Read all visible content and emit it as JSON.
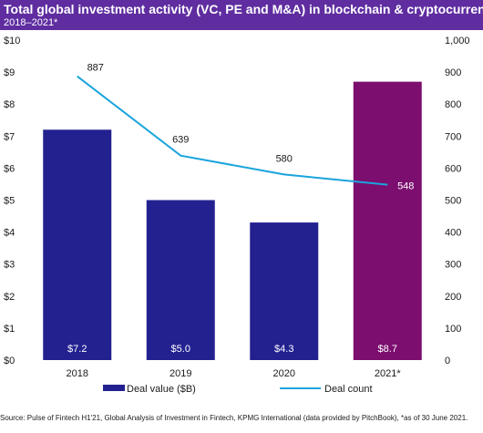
{
  "header": {
    "title": "Total global investment activity (VC, PE and M&A) in blockchain & cryptocurrency",
    "subtitle": "2018–2021*"
  },
  "source": "Source: Pulse of Fintech H1'21, Global Analysis of Investment in Fintech, KPMG International (data provided by PitchBook), *as of 30 June 2021.",
  "colors": {
    "header_bg": "#5f2da0",
    "bar_default": "#232190",
    "bar_highlight": "#7b0e6e",
    "line": "#1aa4dc"
  },
  "chart_data": {
    "type": "bar+line",
    "categories": [
      "2018",
      "2019",
      "2020",
      "2021*"
    ],
    "left_axis": {
      "ylim": [
        0,
        10
      ],
      "ticks": [
        "$0",
        "$1",
        "$2",
        "$3",
        "$4",
        "$5",
        "$6",
        "$7",
        "$8",
        "$9",
        "$10"
      ]
    },
    "right_axis": {
      "ylim": [
        0,
        1000
      ],
      "ticks": [
        "0",
        "100",
        "200",
        "300",
        "400",
        "500",
        "600",
        "700",
        "800",
        "900",
        "1,000"
      ]
    },
    "series": [
      {
        "name": "Deal value ($B)",
        "type": "bar",
        "axis": "left",
        "values": [
          7.2,
          5.0,
          4.3,
          8.7
        ],
        "labels": [
          "$7.2",
          "$5.0",
          "$4.3",
          "$8.7"
        ],
        "highlight_index": 3
      },
      {
        "name": "Deal count",
        "type": "line",
        "axis": "right",
        "values": [
          887,
          639,
          580,
          548
        ],
        "labels": [
          "887",
          "639",
          "580",
          "548"
        ]
      }
    ],
    "legend_position": "bottom"
  }
}
